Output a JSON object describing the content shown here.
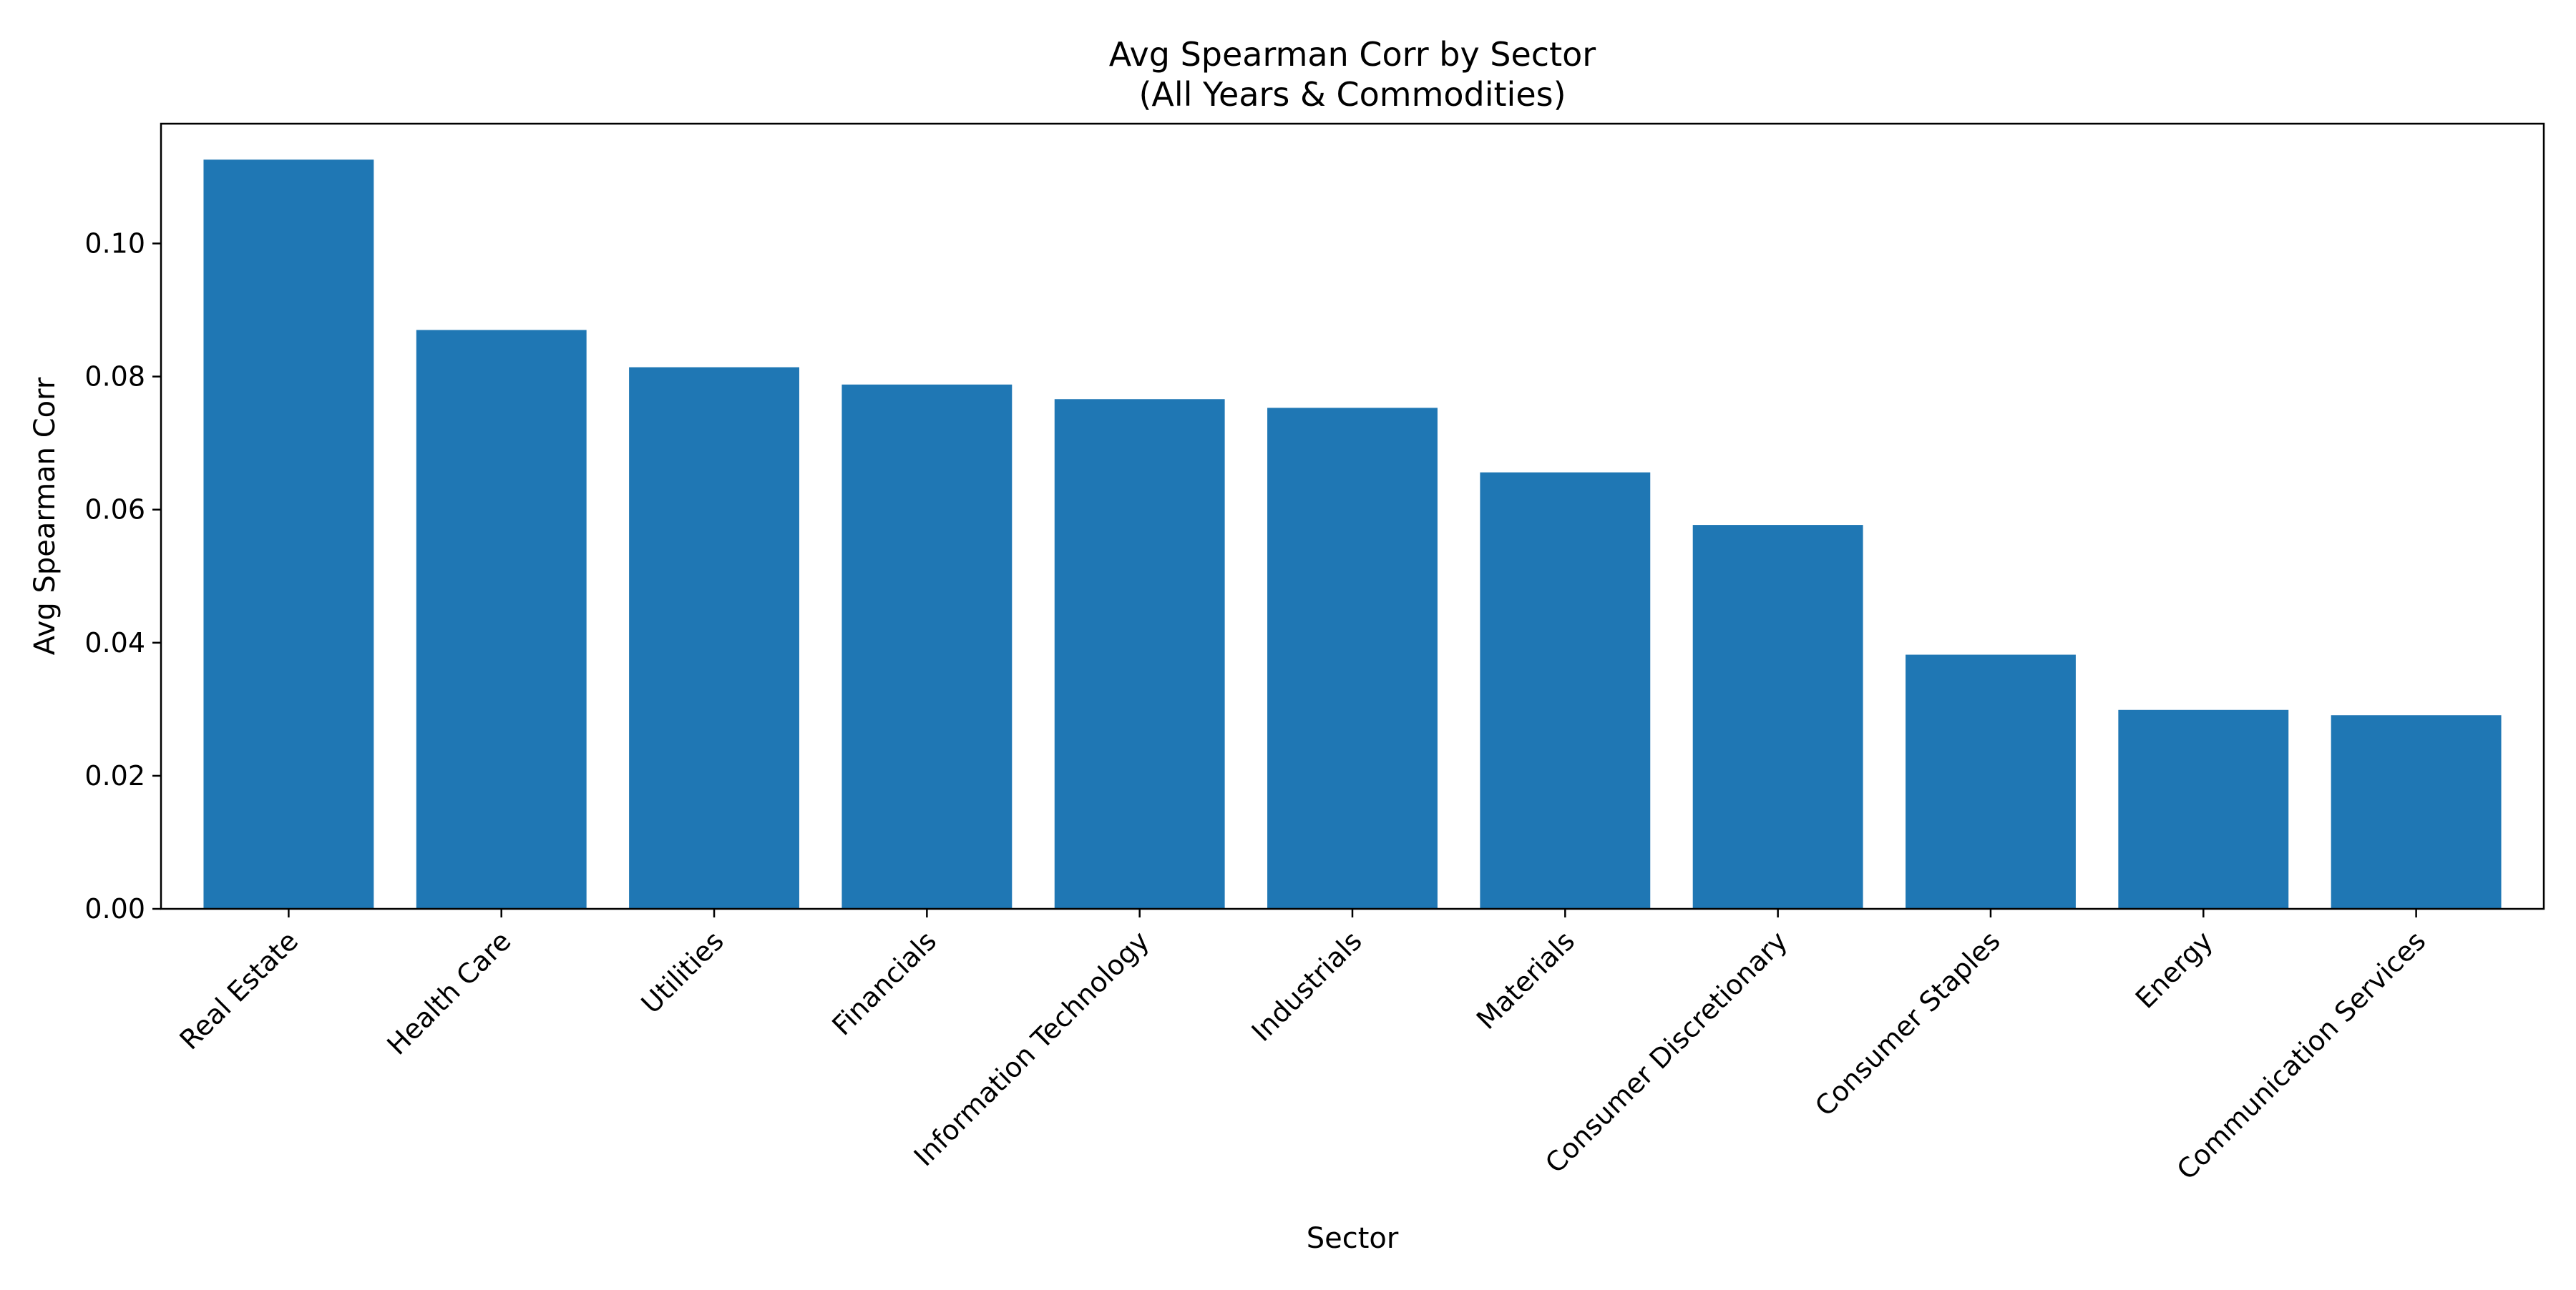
{
  "chart_data": {
    "type": "bar",
    "title": "Avg Spearman Corr by Sector",
    "subtitle": "(All Years & Commodities)",
    "xlabel": "Sector",
    "ylabel": "Avg Spearman Corr",
    "categories": [
      "Real Estate",
      "Health Care",
      "Utilities",
      "Financials",
      "Information Technology",
      "Industrials",
      "Materials",
      "Consumer Discretionary",
      "Consumer Staples",
      "Energy",
      "Communication Services"
    ],
    "values": [
      0.1126,
      0.087,
      0.0814,
      0.0788,
      0.0766,
      0.0753,
      0.0656,
      0.0577,
      0.0382,
      0.0299,
      0.0291
    ],
    "ylim": [
      0,
      0.118
    ],
    "yticks": [
      0.0,
      0.02,
      0.04,
      0.06,
      0.08,
      0.1
    ],
    "ytick_labels": [
      "0.00",
      "0.02",
      "0.04",
      "0.06",
      "0.08",
      "0.10"
    ],
    "grid": false,
    "legend": "none",
    "bar_color": "#1f77b4"
  }
}
